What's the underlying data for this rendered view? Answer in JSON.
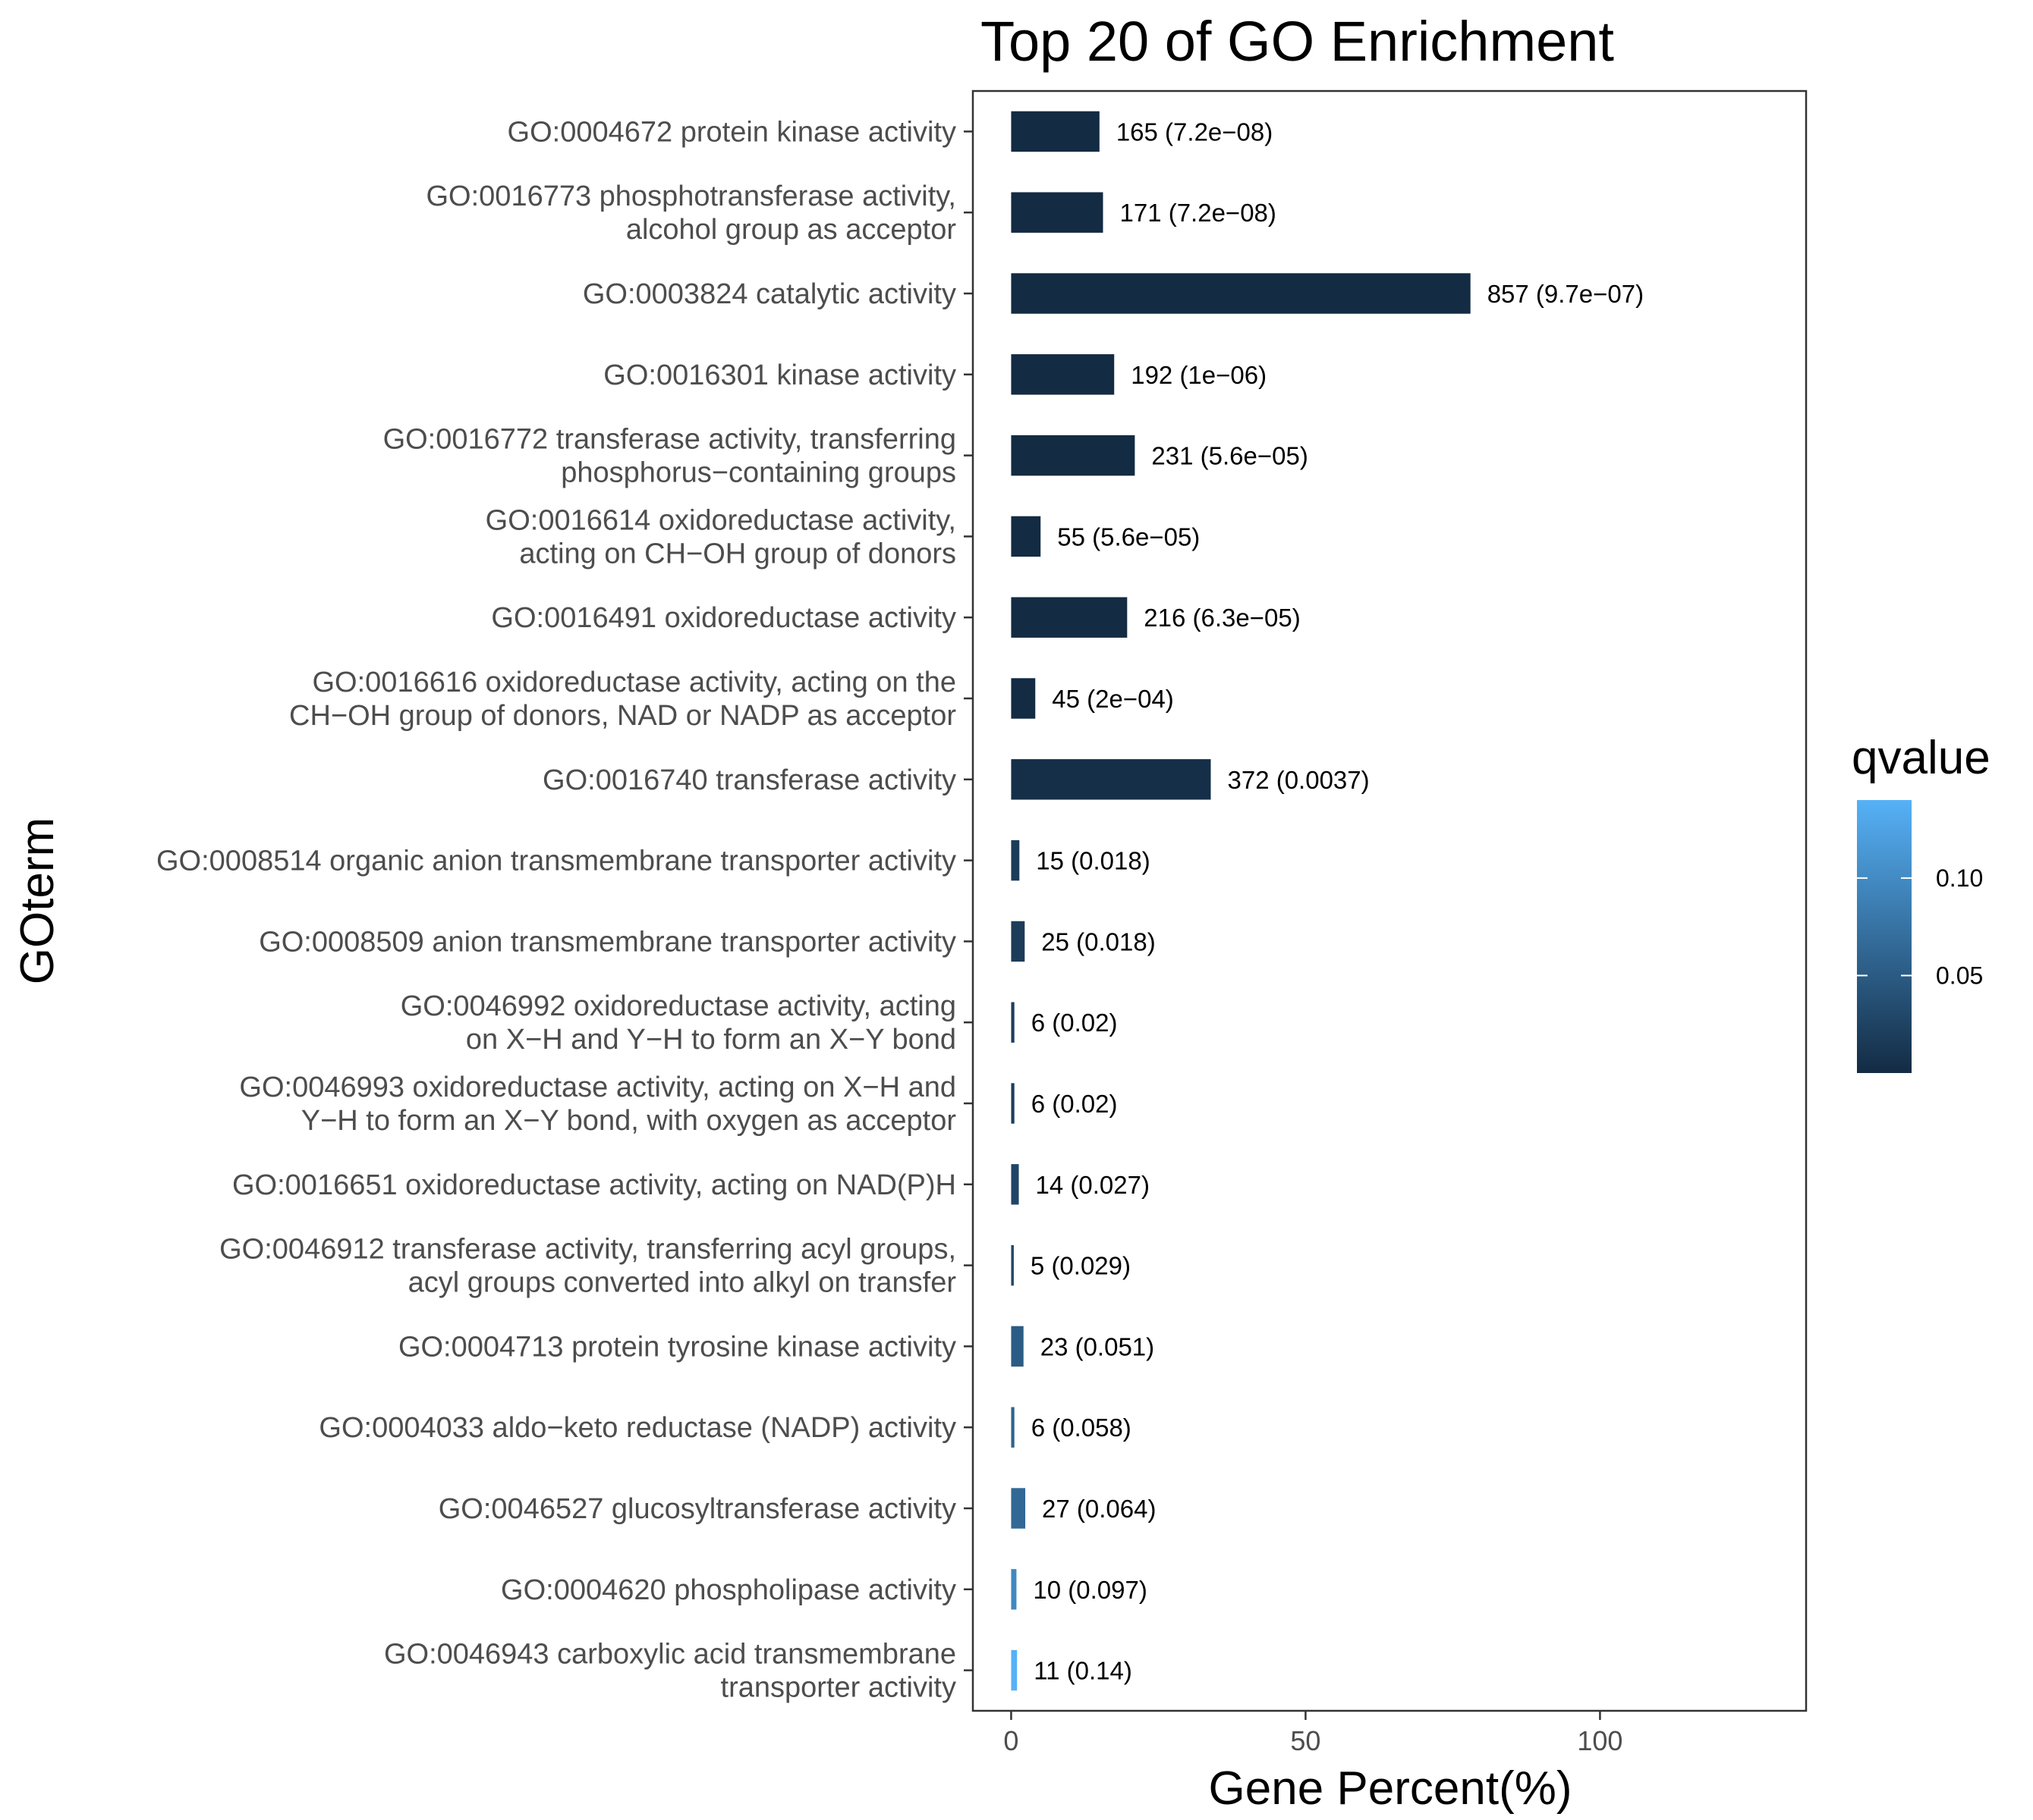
{
  "chart_data": {
    "type": "bar",
    "orientation": "horizontal",
    "title": "Top 20 of GO Enrichment",
    "xlabel": "Gene Percent(%)",
    "ylabel": "GOterm",
    "xlim": [
      -6.5,
      135
    ],
    "xticks": [
      "0",
      "50",
      "100"
    ],
    "grid": false,
    "legend": {
      "title": "qvalue",
      "ticks": [
        "0.05",
        "0.10"
      ],
      "range": [
        0.0,
        0.14
      ],
      "position": "right"
    },
    "colors": {
      "low": "#132b43",
      "high": "#56b1f7"
    },
    "categories": [
      [
        "GO:0004672 protein kinase activity"
      ],
      [
        "GO:0016773 phosphotransferase activity,",
        "alcohol group as acceptor"
      ],
      [
        "GO:0003824 catalytic activity"
      ],
      [
        "GO:0016301 kinase activity"
      ],
      [
        "GO:0016772 transferase activity, transferring",
        "phosphorus−containing groups"
      ],
      [
        "GO:0016614 oxidoreductase activity,",
        "acting on CH−OH group of donors"
      ],
      [
        "GO:0016491 oxidoreductase activity"
      ],
      [
        "GO:0016616 oxidoreductase activity, acting on the",
        "CH−OH group of donors, NAD or NADP as acceptor"
      ],
      [
        "GO:0016740 transferase activity"
      ],
      [
        "GO:0008514 organic anion transmembrane transporter activity"
      ],
      [
        "GO:0008509 anion transmembrane transporter activity"
      ],
      [
        "GO:0046992 oxidoreductase activity, acting",
        "on X−H and Y−H to form an X−Y bond"
      ],
      [
        "GO:0046993 oxidoreductase activity, acting on X−H and",
        "Y−H to form an X−Y bond, with oxygen as acceptor"
      ],
      [
        "GO:0016651 oxidoreductase activity, acting on NAD(P)H"
      ],
      [
        "GO:0046912 transferase activity, transferring acyl groups,",
        "acyl groups converted into alkyl on transfer"
      ],
      [
        "GO:0004713 protein tyrosine kinase activity"
      ],
      [
        "GO:0004033 aldo−keto reductase (NADP) activity"
      ],
      [
        "GO:0046527 glucosyltransferase activity"
      ],
      [
        "GO:0004620 phospholipase activity"
      ],
      [
        "GO:0046943 carboxylic acid transmembrane",
        "transporter activity"
      ]
    ],
    "values": [
      15.0,
      15.6,
      78.0,
      17.5,
      21.0,
      5.0,
      19.7,
      4.1,
      33.9,
      1.4,
      2.3,
      0.55,
      0.55,
      1.3,
      0.45,
      2.1,
      0.55,
      2.4,
      0.9,
      1.0
    ],
    "qvalues": [
      7.2e-08,
      7.2e-08,
      9.7e-07,
      1e-06,
      5.6e-05,
      5.6e-05,
      6.3e-05,
      0.0002,
      0.0037,
      0.018,
      0.018,
      0.02,
      0.02,
      0.027,
      0.029,
      0.051,
      0.058,
      0.064,
      0.097,
      0.14
    ],
    "data_labels": [
      "165 (7.2e−08)",
      "171 (7.2e−08)",
      "857 (9.7e−07)",
      "192 (1e−06)",
      "231 (5.6e−05)",
      "55 (5.6e−05)",
      "216 (6.3e−05)",
      "45 (2e−04)",
      "372 (0.0037)",
      "15 (0.018)",
      "25 (0.018)",
      "6 (0.02)",
      "6 (0.02)",
      "14 (0.027)",
      "5 (0.029)",
      "23 (0.051)",
      "6 (0.058)",
      "27 (0.064)",
      "10 (0.097)",
      "11 (0.14)"
    ]
  }
}
